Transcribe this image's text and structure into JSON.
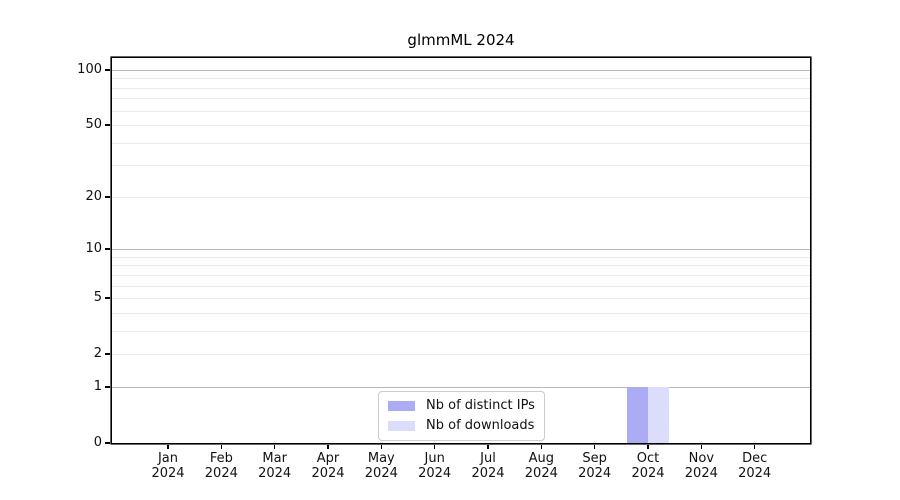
{
  "chart_data": {
    "type": "bar",
    "title": "glmmML 2024",
    "categories": [
      "Jan 2024",
      "Feb 2024",
      "Mar 2024",
      "Apr 2024",
      "May 2024",
      "Jun 2024",
      "Jul 2024",
      "Aug 2024",
      "Sep 2024",
      "Oct 2024",
      "Nov 2024",
      "Dec 2024"
    ],
    "series": [
      {
        "name": "Nb of distinct IPs",
        "color": "#acacf5",
        "values": [
          0,
          0,
          0,
          0,
          0,
          0,
          0,
          0,
          0,
          1,
          0,
          0
        ]
      },
      {
        "name": "Nb of downloads",
        "color": "#dcddfa",
        "values": [
          0,
          0,
          0,
          0,
          0,
          0,
          0,
          0,
          0,
          1,
          0,
          0
        ]
      }
    ],
    "xlabel": "",
    "ylabel": "",
    "y_axis": {
      "scale": "log1p",
      "tick_values": [
        0,
        1,
        2,
        5,
        10,
        20,
        50,
        100
      ],
      "tick_labels": [
        "0",
        "1",
        "2",
        "5",
        "10",
        "20",
        "50",
        "100"
      ],
      "ylim": [
        0,
        116
      ]
    },
    "grid": {
      "major_values": [
        1,
        10,
        100
      ],
      "minor_values": [
        2,
        3,
        4,
        6,
        7,
        8,
        9,
        5,
        20,
        30,
        40,
        50,
        60,
        70,
        80,
        90
      ],
      "major_color": "#b8b8b8",
      "minor_color": "#e9e9e9"
    },
    "legend": {
      "position": "lower center",
      "entries": [
        "Nb of distinct IPs",
        "Nb of downloads"
      ]
    },
    "colors": {
      "axis": "#000000",
      "text": "#111111",
      "background": "#ffffff"
    }
  }
}
